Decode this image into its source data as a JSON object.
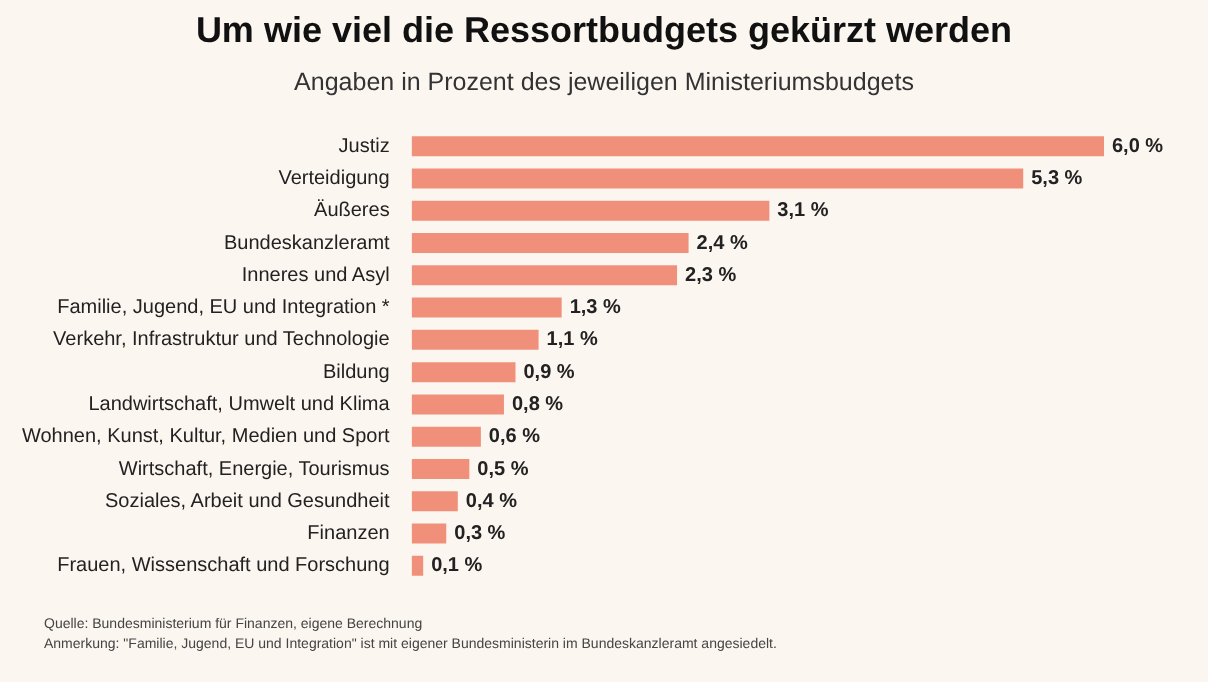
{
  "chart_data": {
    "type": "bar",
    "orientation": "horizontal",
    "title": "Um wie viel die Ressortbudgets gekürzt werden",
    "subtitle": "Angaben in Prozent des jeweiligen Ministeriumsbudgets",
    "categories": [
      "Justiz",
      "Verteidigung",
      "Äußeres",
      "Bundeskanzleramt",
      "Inneres und Asyl",
      "Familie, Jugend, EU und Integration *",
      "Verkehr, Infrastruktur und Technologie",
      "Bildung",
      "Landwirtschaft, Umwelt und Klima",
      "Wohnen, Kunst, Kultur, Medien und Sport",
      "Wirtschaft, Energie, Tourismus",
      "Soziales, Arbeit und Gesundheit",
      "Finanzen",
      "Frauen, Wissenschaft und Forschung"
    ],
    "values": [
      6.0,
      5.3,
      3.1,
      2.4,
      2.3,
      1.3,
      1.1,
      0.9,
      0.8,
      0.6,
      0.5,
      0.4,
      0.3,
      0.1
    ],
    "value_labels": [
      "6,0 %",
      "5,3 %",
      "3,1 %",
      "2,4 %",
      "2,3 %",
      "1,3 %",
      "1,1 %",
      "0,9 %",
      "0,8 %",
      "0,6 %",
      "0,5 %",
      "0,4 %",
      "0,3 %",
      "0,1 %"
    ],
    "color": "#f0907a",
    "annotations": [
      "Quelle: Bundesministerium für Finanzen, eigene Berechnung",
      "Anmerkung: \"Familie, Jugend, EU und Integration\" ist mit eigener Bundesministerin im Bundeskanzleramt angesiedelt."
    ]
  }
}
